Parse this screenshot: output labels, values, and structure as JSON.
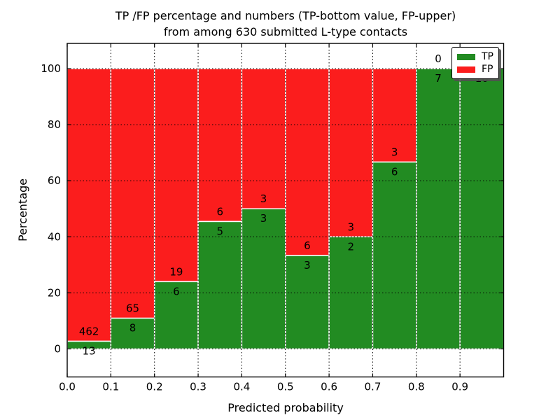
{
  "title": {
    "line1": "TP /FP percentage and numbers (TP-bottom value, FP-upper)",
    "line2": "from among 630 submitted L-type contacts"
  },
  "chart_data": {
    "type": "bar",
    "stacked": true,
    "normalized": "each bin stacked to 100%",
    "title": "TP /FP percentage and numbers (TP-bottom value, FP-upper) from among 630 submitted L-type contacts",
    "xlabel": "Predicted probability",
    "ylabel": "Percentage",
    "total_contacts": 630,
    "xlim": [
      0.0,
      1.0
    ],
    "ylim": [
      -10,
      109
    ],
    "grid": true,
    "grid_style": "dotted",
    "bin_width": 0.1,
    "bin_starts": [
      0.0,
      0.1,
      0.2,
      0.3,
      0.4,
      0.5,
      0.6,
      0.7,
      0.8,
      0.9
    ],
    "x_tick_labels": [
      "0.0",
      "0.1",
      "0.2",
      "0.3",
      "0.4",
      "0.5",
      "0.6",
      "0.7",
      "0.8",
      "0.9"
    ],
    "y_tick_values": [
      0,
      20,
      40,
      60,
      80,
      100
    ],
    "y_tick_labels": [
      "0",
      "20",
      "40",
      "60",
      "80",
      "100"
    ],
    "series": [
      {
        "name": "TP",
        "color": "#228b22",
        "counts": [
          13,
          8,
          6,
          5,
          3,
          3,
          2,
          6,
          7,
          10
        ]
      },
      {
        "name": "FP",
        "color": "#fb1d1d",
        "counts": [
          462,
          65,
          19,
          6,
          3,
          6,
          3,
          3,
          0,
          0
        ]
      }
    ],
    "tp_percent": [
      2.74,
      10.96,
      24.0,
      45.45,
      50.0,
      33.33,
      40.0,
      66.67,
      100.0,
      100.0
    ],
    "bar_edge_color": "#ffffff",
    "legend": {
      "position": "upper right",
      "entries": [
        "TP",
        "FP"
      ]
    }
  }
}
